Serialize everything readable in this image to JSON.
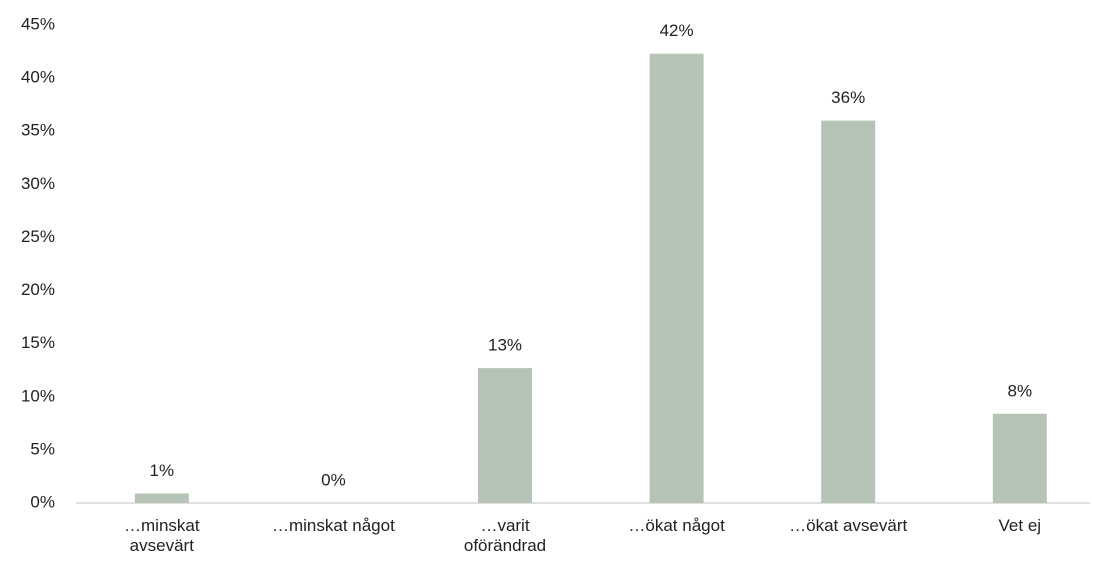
{
  "chart_data": {
    "type": "bar",
    "categories": [
      "…minskat\navsevärt",
      "…minskat något",
      "…varit\noförändrad",
      "…ökat något",
      "…ökat avsevärt",
      "Vet ej"
    ],
    "values": [
      0.9,
      0,
      12.7,
      42.3,
      36,
      8.4
    ],
    "value_labels": [
      "1%",
      "0%",
      "13%",
      "42%",
      "36%",
      "8%"
    ],
    "color": "#b5c4b6",
    "ylim": [
      0,
      45
    ],
    "yticks": [
      {
        "value": 0,
        "label": "0%"
      },
      {
        "value": 5,
        "label": "5%"
      },
      {
        "value": 10,
        "label": "10%"
      },
      {
        "value": 15,
        "label": "15%"
      },
      {
        "value": 20,
        "label": "20%"
      },
      {
        "value": 25,
        "label": "25%"
      },
      {
        "value": 30,
        "label": "30%"
      },
      {
        "value": 35,
        "label": "35%"
      },
      {
        "value": 40,
        "label": "40%"
      },
      {
        "value": 45,
        "label": "45%"
      }
    ],
    "grid": false
  }
}
